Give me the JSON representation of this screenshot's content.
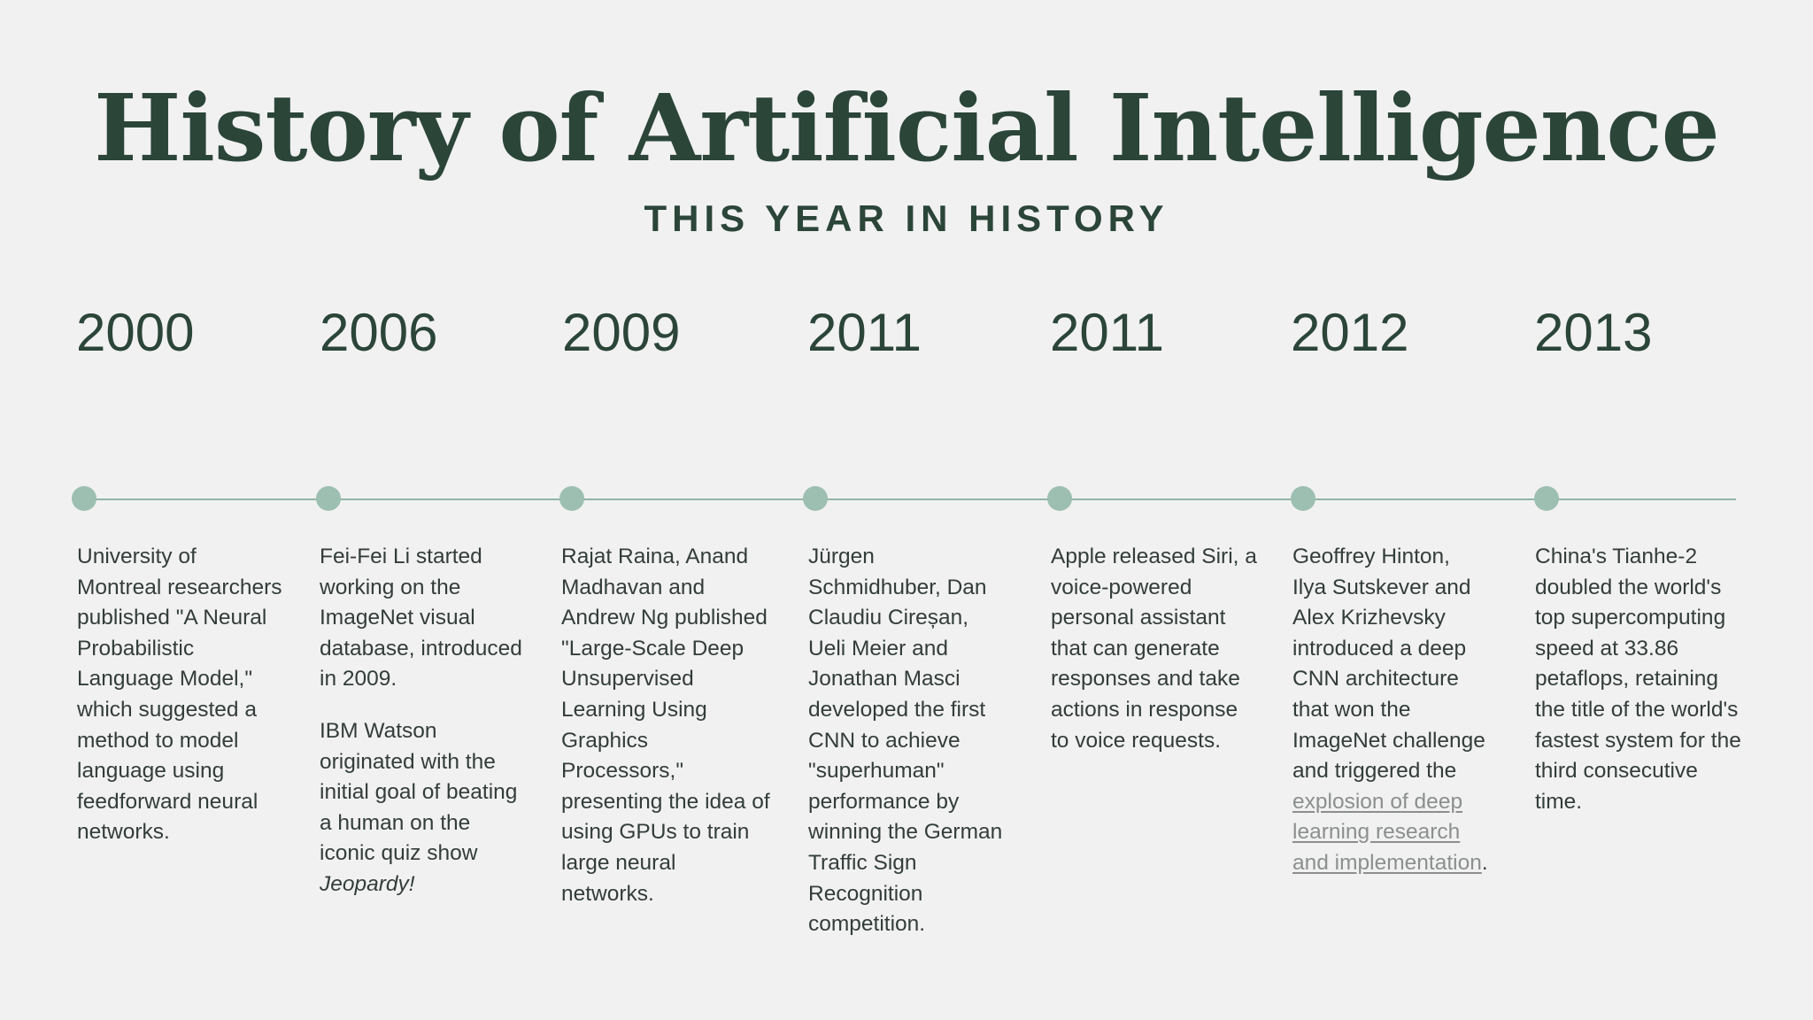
{
  "header": {
    "title": "History of Artificial Intelligence",
    "subtitle": "THIS YEAR IN HISTORY"
  },
  "colors": {
    "background": "#f1f1f1",
    "heading": "#2b4539",
    "body_text": "#333d39",
    "accent": "#9dbfb1",
    "link": "#8b8f8d"
  },
  "events": [
    {
      "year": "2000",
      "text": "University of Montreal researchers published \"A Neural Probabilistic Language Model,\" which suggested a method to model language using feedforward neural networks."
    },
    {
      "year": "2006",
      "text": "Fei-Fei Li started working on the ImageNet visual database, introduced in 2009.",
      "text2_before": "IBM Watson originated with the initial goal of beating a human on the iconic quiz show ",
      "text2_italic": "Jeopardy!"
    },
    {
      "year": "2009",
      "text": "Rajat Raina, Anand Madhavan and Andrew Ng published \"Large-Scale Deep Unsupervised Learning Using Graphics Processors,\" presenting the idea of using GPUs to train large neural networks."
    },
    {
      "year": "2011",
      "text": "Jürgen Schmidhuber, Dan Claudiu Cireșan, Ueli Meier and Jonathan Masci developed the first CNN to achieve \"superhuman\" performance by winning the German Traffic Sign Recognition competition."
    },
    {
      "year": "2011",
      "text": "Apple released Siri, a voice-powered personal assistant that can generate responses and take actions in response to voice requests."
    },
    {
      "year": "2012",
      "text_before": "Geoffrey Hinton, Ilya Sutskever and Alex Krizhevsky introduced a deep CNN architecture that won the ImageNet challenge and triggered the ",
      "link_text": "explosion of deep learning research and implementation",
      "text_after": "."
    },
    {
      "year": "2013",
      "text": "China's Tianhe-2 doubled the world's top supercomputing speed at 33.86 petaflops, retaining the title of the world's fastest system for the third consecutive time."
    }
  ]
}
